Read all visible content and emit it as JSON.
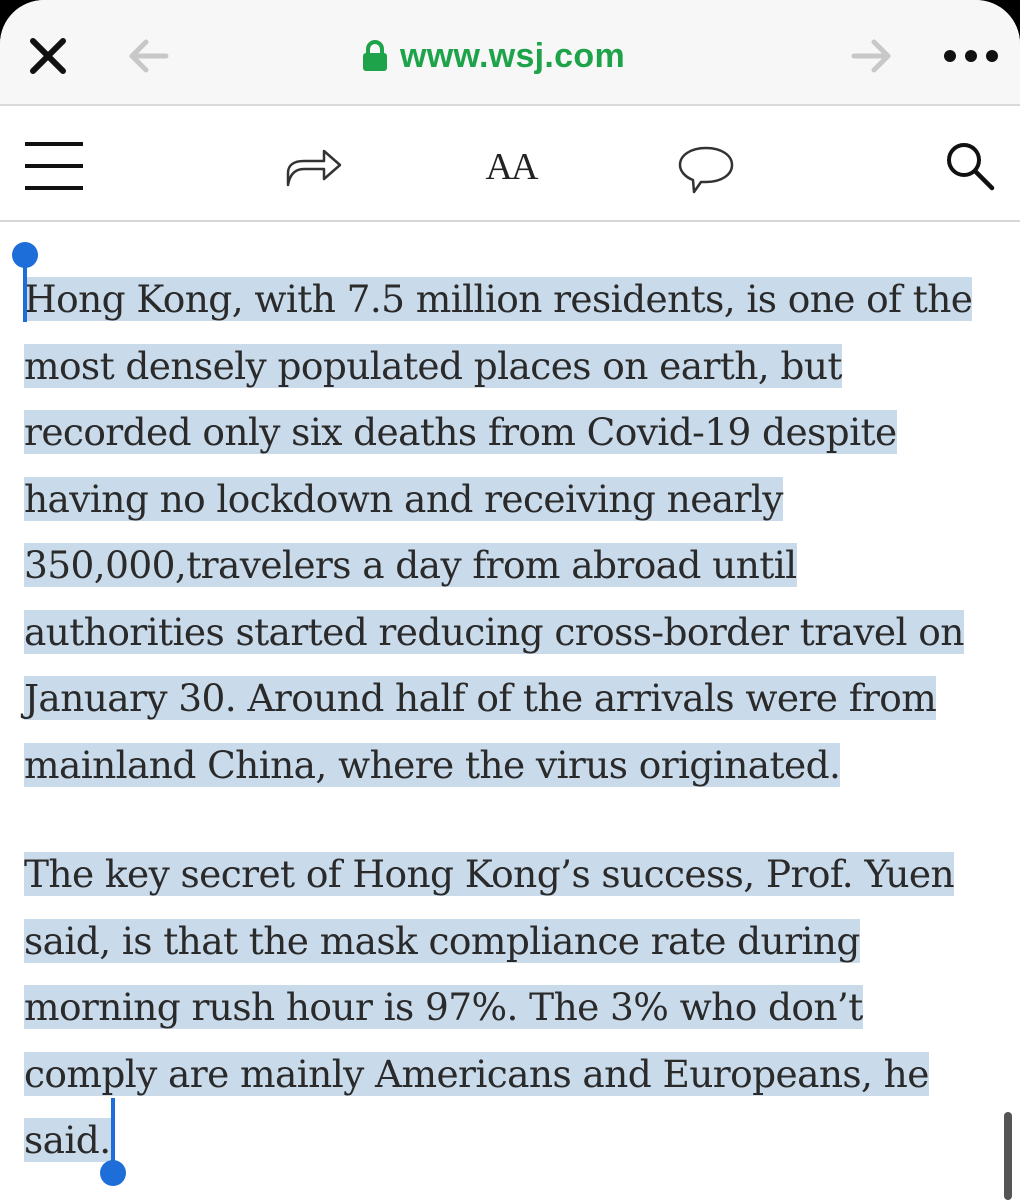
{
  "browser": {
    "url": "www.wsj.com",
    "close_icon": "close-icon",
    "back_icon": "back-arrow-icon",
    "forward_icon": "forward-arrow-icon",
    "more_icon": "more-icon",
    "lock_icon": "lock-icon"
  },
  "toolbar": {
    "menu_icon": "hamburger-menu-icon",
    "share_icon": "share-icon",
    "font_size_label": "AA",
    "comment_icon": "comment-icon",
    "search_icon": "search-icon"
  },
  "article": {
    "paragraphs": [
      "Hong Kong, with 7.5 million residents, is one of the most densely populated places on earth, but recorded only six deaths from Covid-19 despite having no lockdown and receiving nearly 350,000,travelers a day from abroad until authorities started reducing cross-border travel on January 30. Around half of the arrivals were from mainland China, where the virus originated.",
      "The key secret of Hong Kong’s success, Prof. Yuen said, is that the mask compliance rate during morning rush hour is 97%. The 3% who don’t comply are mainly Americans and Europeans, he said."
    ]
  },
  "colors": {
    "url_green": "#1ea34a",
    "selection_highlight": "#c9daeb",
    "selection_handle": "#1d6ed8"
  }
}
